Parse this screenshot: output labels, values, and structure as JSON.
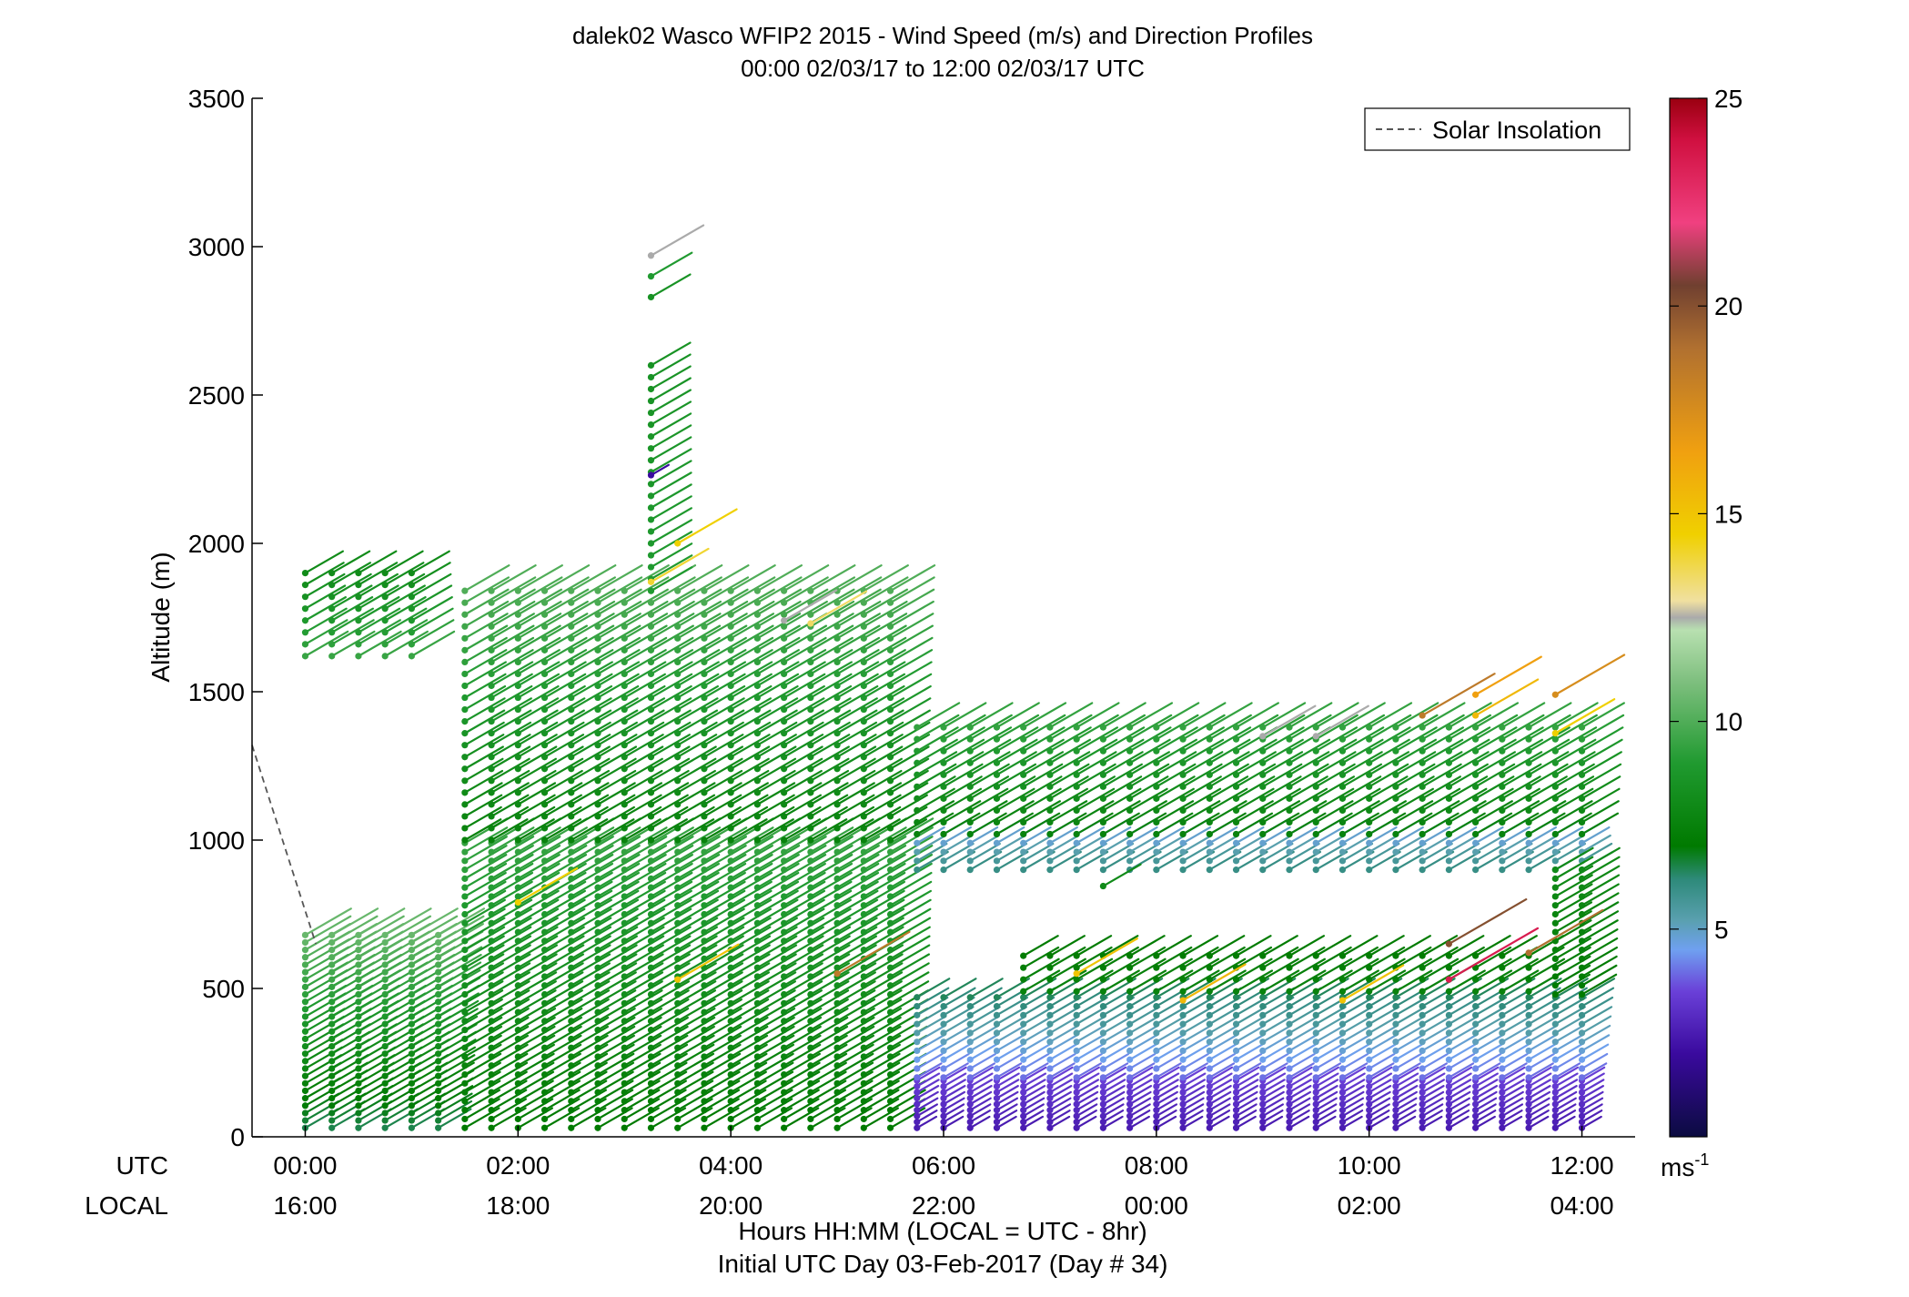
{
  "chart_data": {
    "type": "scatter",
    "title": "dalek02 Wasco WFIP2 2015 - Wind Speed (m/s) and Direction Profiles",
    "subtitle": "00:00 02/03/17 to 12:00 02/03/17  UTC",
    "ylabel": "Altitude (m)",
    "xlabel": "Hours HH:MM  (LOCAL = UTC - 8hr)",
    "xlabel2": "Initial UTC Day 03-Feb-2017 (Day # 34)",
    "row_label_utc": "UTC",
    "row_label_local": "LOCAL",
    "xlim": [
      -0.5,
      12.5
    ],
    "ylim": [
      0,
      3500
    ],
    "yticks": [
      {
        "value": 0,
        "label": "0"
      },
      {
        "value": 500,
        "label": "500"
      },
      {
        "value": 1000,
        "label": "1000"
      },
      {
        "value": 1500,
        "label": "1500"
      },
      {
        "value": 2000,
        "label": "2000"
      },
      {
        "value": 2500,
        "label": "2500"
      },
      {
        "value": 3000,
        "label": "3000"
      },
      {
        "value": 3500,
        "label": "3500"
      }
    ],
    "xticks": [
      {
        "value": 0,
        "utc": "00:00",
        "local": "16:00"
      },
      {
        "value": 2,
        "utc": "02:00",
        "local": "18:00"
      },
      {
        "value": 4,
        "utc": "04:00",
        "local": "20:00"
      },
      {
        "value": 6,
        "utc": "06:00",
        "local": "22:00"
      },
      {
        "value": 8,
        "utc": "08:00",
        "local": "00:00"
      },
      {
        "value": 10,
        "utc": "10:00",
        "local": "02:00"
      },
      {
        "value": 12,
        "utc": "12:00",
        "local": "04:00"
      }
    ],
    "legend": {
      "position": "top-right",
      "entries": [
        "Solar Insolation"
      ]
    },
    "solar_insolation": {
      "color": "#555555",
      "points": [
        [
          -0.5,
          1320
        ],
        [
          0.1,
          650
        ]
      ]
    },
    "colorbar": {
      "range": [
        0,
        25
      ],
      "ticks": [
        {
          "value": 5,
          "label": "5"
        },
        {
          "value": 10,
          "label": "10"
        },
        {
          "value": 15,
          "label": "15"
        },
        {
          "value": 20,
          "label": "20"
        },
        {
          "value": 25,
          "label": "25"
        }
      ],
      "unit_label": "ms",
      "unit_exponent": "-1",
      "stops": [
        {
          "v": 0,
          "c": "#0b0b40"
        },
        {
          "v": 2,
          "c": "#3a0a9e"
        },
        {
          "v": 3.5,
          "c": "#6a40d8"
        },
        {
          "v": 4.5,
          "c": "#6fa0f0"
        },
        {
          "v": 5.2,
          "c": "#5aa0b0"
        },
        {
          "v": 6.2,
          "c": "#2e8a7a"
        },
        {
          "v": 7,
          "c": "#007a00"
        },
        {
          "v": 9,
          "c": "#209a30"
        },
        {
          "v": 11,
          "c": "#80c080"
        },
        {
          "v": 12.2,
          "c": "#b8e0b0"
        },
        {
          "v": 12.5,
          "c": "#aaaaaa"
        },
        {
          "v": 12.9,
          "c": "#f0e0a0"
        },
        {
          "v": 14.5,
          "c": "#f0d000"
        },
        {
          "v": 16.5,
          "c": "#f0a010"
        },
        {
          "v": 19,
          "c": "#b07030"
        },
        {
          "v": 20.5,
          "c": "#704030"
        },
        {
          "v": 22,
          "c": "#f04080"
        },
        {
          "v": 24,
          "c": "#d01040"
        },
        {
          "v": 25,
          "c": "#9a0010"
        }
      ]
    },
    "wind_profiles": {
      "time_step_hours": 0.25,
      "barb_direction_deg": 300,
      "segments": [
        {
          "t0": 0.0,
          "t1": 1.25,
          "z0": 30,
          "z1": 680,
          "dz": 25,
          "spd_low": 6.5,
          "spd_high": 10.5
        },
        {
          "t0": 0.0,
          "t1": 1.1,
          "z0": 1620,
          "z1": 1910,
          "dz": 40,
          "spd_low": 9.5,
          "spd_high": 8.0
        },
        {
          "t0": 1.5,
          "t1": 5.5,
          "z0": 30,
          "z1": 1000,
          "dz": 30,
          "spd_low": 7.0,
          "spd_high": 9.5
        },
        {
          "t0": 1.5,
          "t1": 5.5,
          "z0": 1000,
          "z1": 1840,
          "dz": 40,
          "spd_low": 7.5,
          "spd_high": 10.0
        },
        {
          "t0": 3.25,
          "t1": 3.25,
          "z0": 1840,
          "z1": 2600,
          "dz": 40,
          "spd_low": 9.0,
          "spd_high": 8.5
        },
        {
          "t0": 5.75,
          "t1": 12.0,
          "z0": 30,
          "z1": 200,
          "dz": 20,
          "spd_low": 2.5,
          "spd_high": 3.5
        },
        {
          "t0": 5.75,
          "t1": 12.0,
          "z0": 200,
          "z1": 480,
          "dz": 30,
          "spd_low": 4.0,
          "spd_high": 6.5
        },
        {
          "t0": 6.75,
          "t1": 11.5,
          "z0": 490,
          "z1": 640,
          "dz": 40,
          "spd_low": 7.5,
          "spd_high": 7.0
        },
        {
          "t0": 5.75,
          "t1": 12.0,
          "z0": 900,
          "z1": 1020,
          "dz": 30,
          "spd_low": 6.0,
          "spd_high": 4.5
        },
        {
          "t0": 5.75,
          "t1": 12.0,
          "z0": 1020,
          "z1": 1400,
          "dz": 40,
          "spd_low": 7.5,
          "spd_high": 9.5
        },
        {
          "t0": 11.75,
          "t1": 12.0,
          "z0": 480,
          "z1": 900,
          "dz": 30,
          "spd_low": 7.0,
          "spd_high": 8.0
        }
      ],
      "highlights": [
        {
          "t": 3.25,
          "z": 2970,
          "spd": 12.5
        },
        {
          "t": 3.25,
          "z": 2900,
          "spd": 9.0
        },
        {
          "t": 3.25,
          "z": 2830,
          "spd": 8.5
        },
        {
          "t": 3.25,
          "z": 2230,
          "spd": 2.0
        },
        {
          "t": 3.25,
          "z": 1870,
          "spd": 14.0
        },
        {
          "t": 3.5,
          "z": 2000,
          "spd": 14.5
        },
        {
          "t": 4.75,
          "z": 1730,
          "spd": 13.5
        },
        {
          "t": 4.5,
          "z": 1740,
          "spd": 12.5
        },
        {
          "t": 3.5,
          "z": 530,
          "spd": 15.0
        },
        {
          "t": 5.0,
          "z": 550,
          "spd": 18.5
        },
        {
          "t": 2.0,
          "z": 790,
          "spd": 14.5
        },
        {
          "t": 10.5,
          "z": 1420,
          "spd": 18.5
        },
        {
          "t": 11.0,
          "z": 1490,
          "spd": 16.5
        },
        {
          "t": 11.0,
          "z": 1420,
          "spd": 15.5
        },
        {
          "t": 11.75,
          "z": 1490,
          "spd": 17.5
        },
        {
          "t": 11.75,
          "z": 1360,
          "spd": 14.5
        },
        {
          "t": 10.75,
          "z": 650,
          "spd": 20.0
        },
        {
          "t": 10.75,
          "z": 530,
          "spd": 23.5
        },
        {
          "t": 11.5,
          "z": 620,
          "spd": 19.0
        },
        {
          "t": 7.25,
          "z": 550,
          "spd": 15.0
        },
        {
          "t": 8.25,
          "z": 460,
          "spd": 15.5
        },
        {
          "t": 9.75,
          "z": 460,
          "spd": 15.0
        },
        {
          "t": 7.5,
          "z": 845,
          "spd": 8.0
        },
        {
          "t": 9.0,
          "z": 1350,
          "spd": 12.5
        },
        {
          "t": 9.5,
          "z": 1350,
          "spd": 12.5
        }
      ]
    }
  }
}
